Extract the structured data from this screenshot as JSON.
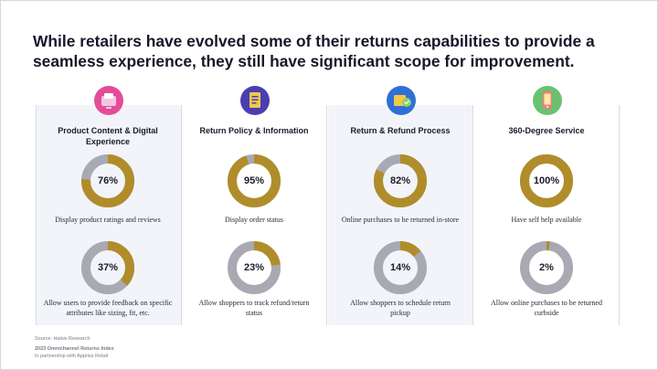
{
  "headline": "While retailers have evolved some of their returns capabilities to provide a seamless experience, they still have significant scope for improvement.",
  "chart_data": {
    "type": "pie",
    "colors": {
      "filled": "#b08d2a",
      "remaining": "#a8a9b2"
    },
    "categories": [
      {
        "title": "Product Content & Digital Experience",
        "icon": "product-content-icon",
        "items": [
          {
            "value": 76,
            "label": "76%",
            "description": "Display product ratings and reviews"
          },
          {
            "value": 37,
            "label": "37%",
            "description": "Allow users to provide feedback on specific attributes like sizing, fit, etc."
          }
        ]
      },
      {
        "title": "Return Policy & Information",
        "icon": "return-policy-icon",
        "items": [
          {
            "value": 95,
            "label": "95%",
            "description": "Display order status"
          },
          {
            "value": 23,
            "label": "23%",
            "description": "Allow shoppers to track refund/return status"
          }
        ]
      },
      {
        "title": "Return & Refund Process",
        "icon": "refund-process-icon",
        "items": [
          {
            "value": 82,
            "label": "82%",
            "description": "Online purchases to be returned in-store"
          },
          {
            "value": 14,
            "label": "14%",
            "description": "Allow shoppers to schedule return pickup"
          }
        ]
      },
      {
        "title": "360-Degree Service",
        "icon": "service-360-icon",
        "items": [
          {
            "value": 100,
            "label": "100%",
            "description": "Have self help available"
          },
          {
            "value": 2,
            "label": "2%",
            "description": "Allow online purchases to be returned curbside"
          }
        ]
      }
    ]
  },
  "footer": {
    "source": "Source: Halsiv Research",
    "report": "2023 Omnichannel Returns Index",
    "partner": "In partnership with Appriss Retail"
  }
}
